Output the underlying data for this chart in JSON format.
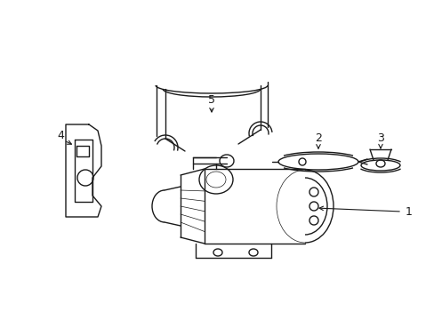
{
  "background_color": "#ffffff",
  "line_color": "#1a1a1a",
  "line_width": 1.0
}
